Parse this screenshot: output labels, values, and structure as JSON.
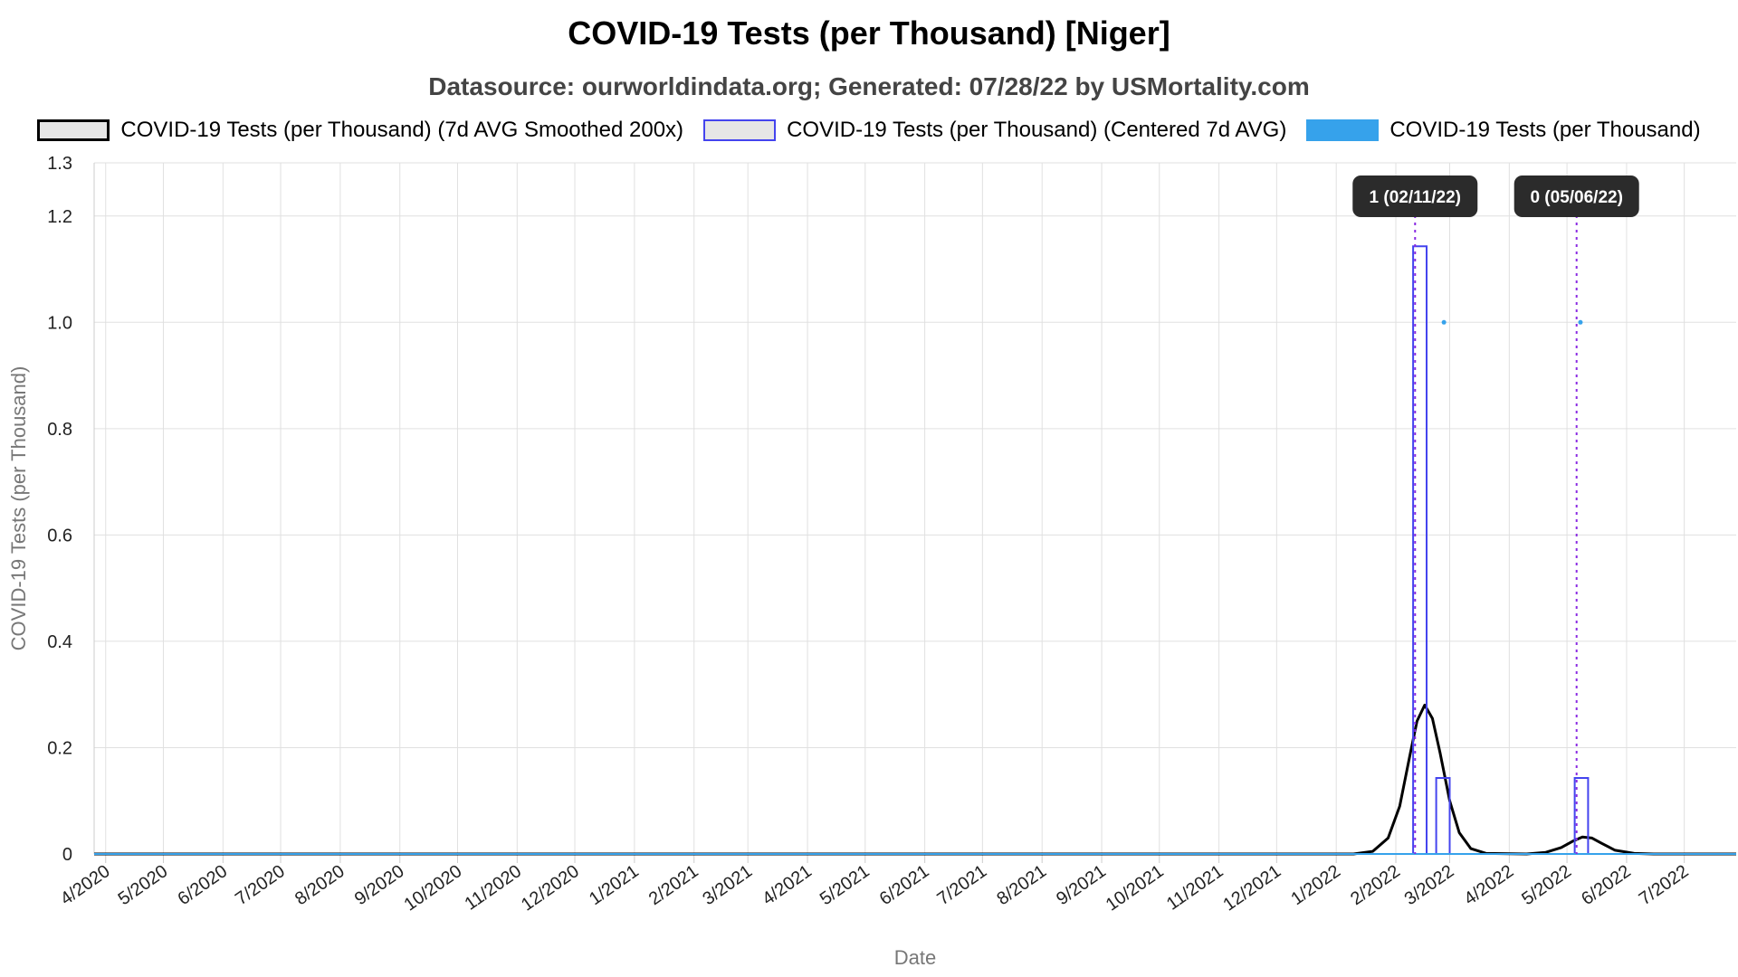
{
  "page": {
    "title": "COVID-19 Tests (per Thousand) [Niger]",
    "subtitle": "Datasource: ourworldindata.org; Generated: 07/28/22 by USMortality.com"
  },
  "chart_data": {
    "type": "line",
    "title": "COVID-19 Tests (per Thousand) [Niger]",
    "subtitle": "Datasource: ourworldindata.org; Generated: 07/28/22 by USMortality.com",
    "xlabel": "Date",
    "ylabel": "COVID-19 Tests (per Thousand)",
    "ylim": [
      0,
      1.3
    ],
    "yticks": [
      0,
      0.2,
      0.4,
      0.6,
      0.8,
      1.0,
      1.2,
      1.3
    ],
    "ytick_labels": [
      "0",
      "0.2",
      "0.4",
      "0.6",
      "0.8",
      "1.0",
      "1.2",
      "1.3"
    ],
    "xlim": [
      "2020-03-26",
      "2022-07-28"
    ],
    "x_tick_dates": [
      "2020-04-01",
      "2020-05-01",
      "2020-06-01",
      "2020-07-01",
      "2020-08-01",
      "2020-09-01",
      "2020-10-01",
      "2020-11-01",
      "2020-12-01",
      "2021-01-01",
      "2021-02-01",
      "2021-03-01",
      "2021-04-01",
      "2021-05-01",
      "2021-06-01",
      "2021-07-01",
      "2021-08-01",
      "2021-09-01",
      "2021-10-01",
      "2021-11-01",
      "2021-12-01",
      "2022-01-01",
      "2022-02-01",
      "2022-03-01",
      "2022-04-01",
      "2022-05-01",
      "2022-06-01",
      "2022-07-01"
    ],
    "x_tick_labels": [
      "4/2020",
      "5/2020",
      "6/2020",
      "7/2020",
      "8/2020",
      "9/2020",
      "10/2020",
      "11/2020",
      "12/2020",
      "1/2021",
      "2/2021",
      "3/2021",
      "4/2021",
      "5/2021",
      "6/2021",
      "7/2021",
      "8/2021",
      "9/2021",
      "10/2021",
      "11/2021",
      "12/2021",
      "1/2022",
      "2/2022",
      "3/2022",
      "4/2022",
      "5/2022",
      "6/2022",
      "7/2022"
    ],
    "grid": true,
    "legend_position": "top",
    "series": [
      {
        "name": "COVID-19 Tests (per Thousand) (7d AVG Smoothed 200x)",
        "color": "#000000",
        "style": "line",
        "points": [
          [
            "2020-03-26",
            0
          ],
          [
            "2022-01-10",
            0
          ],
          [
            "2022-01-20",
            0.005
          ],
          [
            "2022-01-28",
            0.03
          ],
          [
            "2022-02-03",
            0.09
          ],
          [
            "2022-02-08",
            0.18
          ],
          [
            "2022-02-12",
            0.25
          ],
          [
            "2022-02-16",
            0.28
          ],
          [
            "2022-02-20",
            0.255
          ],
          [
            "2022-02-24",
            0.19
          ],
          [
            "2022-03-01",
            0.1
          ],
          [
            "2022-03-06",
            0.04
          ],
          [
            "2022-03-12",
            0.01
          ],
          [
            "2022-03-20",
            0.001
          ],
          [
            "2022-04-10",
            0
          ],
          [
            "2022-04-20",
            0.003
          ],
          [
            "2022-04-28",
            0.012
          ],
          [
            "2022-05-04",
            0.024
          ],
          [
            "2022-05-09",
            0.032
          ],
          [
            "2022-05-14",
            0.03
          ],
          [
            "2022-05-19",
            0.02
          ],
          [
            "2022-05-26",
            0.007
          ],
          [
            "2022-06-05",
            0.001
          ],
          [
            "2022-06-15",
            0
          ],
          [
            "2022-07-28",
            0
          ]
        ]
      },
      {
        "name": "COVID-19 Tests (per Thousand) (Centered 7d AVG)",
        "color": "#4444ee",
        "style": "step",
        "points": [
          [
            "2020-03-26",
            0
          ],
          [
            "2022-02-10",
            0
          ],
          [
            "2022-02-10",
            1.143
          ],
          [
            "2022-02-17",
            1.143
          ],
          [
            "2022-02-17",
            0
          ],
          [
            "2022-02-22",
            0
          ],
          [
            "2022-02-22",
            0.143
          ],
          [
            "2022-03-01",
            0.143
          ],
          [
            "2022-03-01",
            0
          ],
          [
            "2022-05-05",
            0
          ],
          [
            "2022-05-05",
            0.143
          ],
          [
            "2022-05-12",
            0.143
          ],
          [
            "2022-05-12",
            0
          ],
          [
            "2022-07-28",
            0
          ]
        ]
      },
      {
        "name": "COVID-19 Tests (per Thousand)",
        "color": "#36a2eb",
        "style": "points",
        "points": [
          [
            "2022-02-26",
            1.0
          ],
          [
            "2022-05-08",
            1.0
          ]
        ]
      }
    ],
    "annotations": [
      {
        "date": "2022-02-11",
        "label": "1 (02/11/22)"
      },
      {
        "date": "2022-05-06",
        "label": "0 (05/06/22)"
      }
    ]
  }
}
